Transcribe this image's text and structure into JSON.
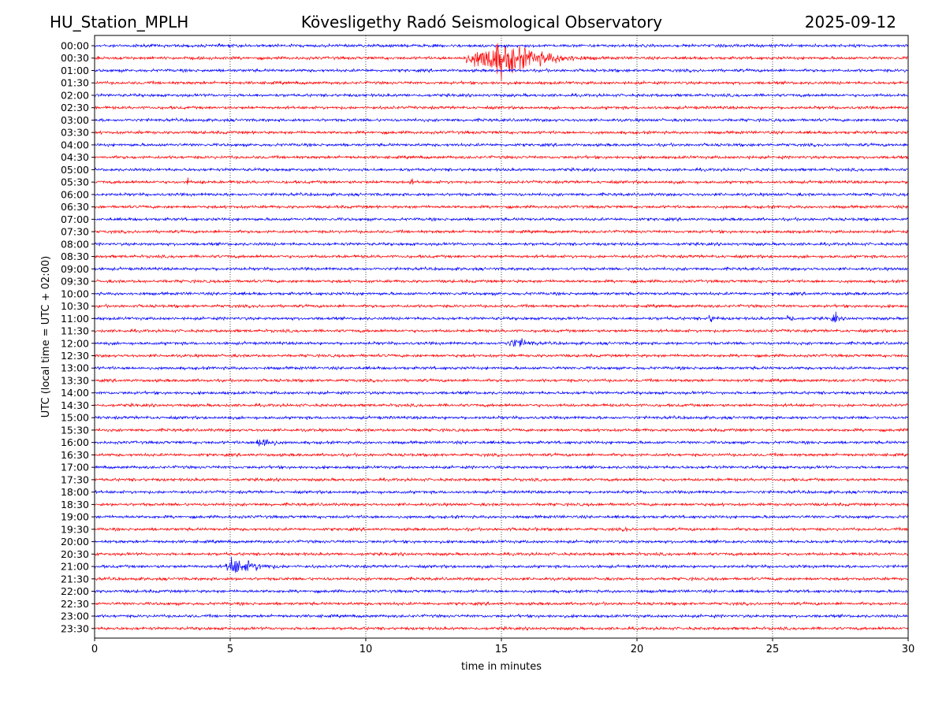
{
  "header": {
    "station": "HU_Station_MPLH",
    "observatory": "Kövesligethy Radó Seismological Observatory",
    "date": "2025-09-12"
  },
  "chart_data": {
    "type": "line",
    "title": "Kövesligethy Radó Seismological Observatory",
    "xlabel": "time in minutes",
    "ylabel": "UTC (local time = UTC + 02:00)",
    "xlim": [
      0,
      30
    ],
    "x_ticks": [
      "0",
      "5",
      "10",
      "15",
      "20",
      "25",
      "30"
    ],
    "x_tick_values": [
      0,
      5,
      10,
      15,
      20,
      25,
      30
    ],
    "grid": "vertical dotted lines at x ticks",
    "colors": {
      "even_row": "#0000ff",
      "odd_row": "#ff0000",
      "grid": "#000000"
    },
    "rows": [
      "00:00",
      "00:30",
      "01:00",
      "01:30",
      "02:00",
      "02:30",
      "03:00",
      "03:30",
      "04:00",
      "04:30",
      "05:00",
      "05:30",
      "06:00",
      "06:30",
      "07:00",
      "07:30",
      "08:00",
      "08:30",
      "09:00",
      "09:30",
      "10:00",
      "10:30",
      "11:00",
      "11:30",
      "12:00",
      "12:30",
      "13:00",
      "13:30",
      "14:00",
      "14:30",
      "15:00",
      "15:30",
      "16:00",
      "16:30",
      "17:00",
      "17:30",
      "18:00",
      "18:30",
      "19:00",
      "19:30",
      "20:00",
      "20:30",
      "21:00",
      "21:30",
      "22:00",
      "22:30",
      "23:00",
      "23:30"
    ],
    "events": [
      {
        "row": 1,
        "start_min": 13.3,
        "peak_min": 15.0,
        "end_min": 19.5,
        "amplitude": 4.5,
        "kind": "teleseism"
      },
      {
        "row": 11,
        "start_min": 3.4,
        "peak_min": 3.45,
        "end_min": 3.6,
        "amplitude": 2.2,
        "kind": "spike"
      },
      {
        "row": 11,
        "start_min": 3.95,
        "peak_min": 4.0,
        "end_min": 4.15,
        "amplitude": 2.2,
        "kind": "spike"
      },
      {
        "row": 11,
        "start_min": 11.5,
        "peak_min": 11.7,
        "end_min": 12.1,
        "amplitude": 0.9,
        "kind": "local"
      },
      {
        "row": 22,
        "start_min": 22.5,
        "peak_min": 22.7,
        "end_min": 23.6,
        "amplitude": 1.2,
        "kind": "local"
      },
      {
        "row": 22,
        "start_min": 25.5,
        "peak_min": 25.6,
        "end_min": 26.0,
        "amplitude": 2.2,
        "kind": "local"
      },
      {
        "row": 22,
        "start_min": 27.1,
        "peak_min": 27.3,
        "end_min": 27.7,
        "amplitude": 1.8,
        "kind": "local"
      },
      {
        "row": 24,
        "start_min": 14.9,
        "peak_min": 15.6,
        "end_min": 17.5,
        "amplitude": 1.4,
        "kind": "regional"
      },
      {
        "row": 32,
        "start_min": 5.9,
        "peak_min": 6.1,
        "end_min": 7.6,
        "amplitude": 2.0,
        "kind": "local"
      },
      {
        "row": 32,
        "start_min": 9.7,
        "peak_min": 10.0,
        "end_min": 10.5,
        "amplitude": 0.4,
        "kind": "minor"
      },
      {
        "row": 35,
        "start_min": 29.9,
        "peak_min": 30.0,
        "end_min": 30.0,
        "amplitude": 0.5,
        "kind": "minor"
      },
      {
        "row": 36,
        "start_min": 0.0,
        "peak_min": 0.1,
        "end_min": 1.2,
        "amplitude": 0.5,
        "kind": "minor"
      },
      {
        "row": 36,
        "start_min": 3.6,
        "peak_min": 3.8,
        "end_min": 4.2,
        "amplitude": 0.25,
        "kind": "minor"
      },
      {
        "row": 39,
        "start_min": 13.6,
        "peak_min": 13.8,
        "end_min": 14.1,
        "amplitude": 0.5,
        "kind": "local"
      },
      {
        "row": 39,
        "start_min": 15.1,
        "peak_min": 15.3,
        "end_min": 15.9,
        "amplitude": 0.6,
        "kind": "local"
      },
      {
        "row": 39,
        "start_min": 16.0,
        "peak_min": 16.3,
        "end_min": 16.6,
        "amplitude": 0.6,
        "kind": "local"
      },
      {
        "row": 39,
        "start_min": 19.4,
        "peak_min": 19.6,
        "end_min": 19.8,
        "amplitude": 0.9,
        "kind": "spike"
      },
      {
        "row": 39,
        "start_min": 23.7,
        "peak_min": 23.85,
        "end_min": 24.0,
        "amplitude": 0.5,
        "kind": "local"
      },
      {
        "row": 39,
        "start_min": 26.7,
        "peak_min": 27.0,
        "end_min": 27.4,
        "amplitude": 0.35,
        "kind": "local"
      },
      {
        "row": 42,
        "start_min": 4.8,
        "peak_min": 4.95,
        "end_min": 8.2,
        "amplitude": 2.6,
        "kind": "local"
      },
      {
        "row": 43,
        "start_min": 21.7,
        "peak_min": 21.9,
        "end_min": 23.2,
        "amplitude": 0.4,
        "kind": "minor"
      },
      {
        "row": 44,
        "start_min": 2.1,
        "peak_min": 2.3,
        "end_min": 2.8,
        "amplitude": 0.35,
        "kind": "minor"
      },
      {
        "row": 44,
        "start_min": 24.6,
        "peak_min": 24.8,
        "end_min": 25.2,
        "amplitude": 0.25,
        "kind": "minor"
      },
      {
        "row": 45,
        "start_min": 11.0,
        "peak_min": 11.2,
        "end_min": 12.3,
        "amplitude": 0.45,
        "kind": "minor"
      },
      {
        "row": 47,
        "start_min": 3.1,
        "peak_min": 4.2,
        "end_min": 4.7,
        "amplitude": 0.35,
        "kind": "minor"
      }
    ]
  }
}
